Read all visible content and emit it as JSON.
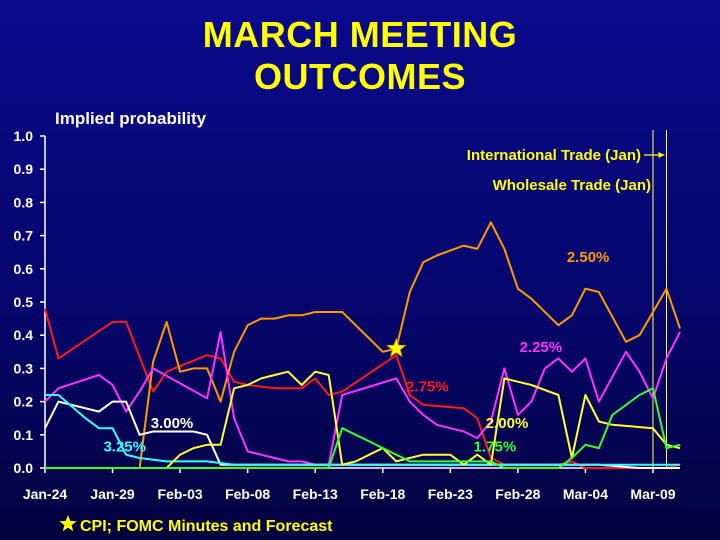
{
  "title_lines": [
    "MARCH MEETING",
    "OUTCOMES"
  ],
  "chart_data": {
    "type": "line",
    "ylabel": "Implied probability",
    "ylim": [
      0,
      1.0
    ],
    "yticks": [
      "0.0",
      "0.1",
      "0.2",
      "0.3",
      "0.4",
      "0.5",
      "0.6",
      "0.7",
      "0.8",
      "0.9",
      "1.0"
    ],
    "xticks": [
      "Jan-24",
      "Jan-29",
      "Feb-03",
      "Feb-08",
      "Feb-13",
      "Feb-18",
      "Feb-23",
      "Feb-28",
      "Mar-04",
      "Mar-09"
    ],
    "xlim": [
      0,
      47
    ],
    "grid": false,
    "series": [
      {
        "name": "2.75%",
        "color": "#ff1a1a",
        "x": [
          0,
          1,
          5,
          6,
          8,
          9,
          12,
          13,
          14,
          15,
          17,
          18,
          19,
          20,
          21,
          22,
          26,
          27,
          28,
          31,
          32,
          33,
          34,
          38,
          39,
          40,
          41,
          46,
          47
        ],
        "y": [
          0.48,
          0.33,
          0.44,
          0.44,
          0.23,
          0.29,
          0.34,
          0.33,
          0.26,
          0.25,
          0.24,
          0.24,
          0.24,
          0.27,
          0.22,
          0.23,
          0.34,
          0.22,
          0.19,
          0.18,
          0.15,
          0.03,
          0.01,
          0.01,
          0.02,
          0.0,
          0.0,
          0.0,
          0.01
        ]
      },
      {
        "name": "2.50%",
        "color": "#ff9900",
        "x": [
          0,
          7,
          8,
          9,
          10,
          11,
          12,
          13,
          14,
          15,
          16,
          17,
          18,
          19,
          20,
          21,
          22,
          25,
          26,
          27,
          28,
          29,
          31,
          32,
          33,
          34,
          35,
          36,
          38,
          39,
          40,
          41,
          43,
          44,
          46,
          47
        ],
        "y": [
          0.0,
          0.0,
          0.32,
          0.44,
          0.29,
          0.3,
          0.3,
          0.2,
          0.35,
          0.43,
          0.45,
          0.45,
          0.46,
          0.46,
          0.47,
          0.47,
          0.47,
          0.35,
          0.36,
          0.53,
          0.62,
          0.64,
          0.67,
          0.66,
          0.74,
          0.66,
          0.54,
          0.51,
          0.43,
          0.46,
          0.54,
          0.53,
          0.38,
          0.4,
          0.54,
          0.42
        ]
      },
      {
        "name": "2.25%",
        "color": "#ff33ff",
        "x": [
          0,
          1,
          4,
          5,
          6,
          7,
          8,
          12,
          13,
          14,
          15,
          16,
          17,
          18,
          19,
          20,
          21,
          22,
          26,
          27,
          28,
          29,
          30,
          31,
          32,
          33,
          34,
          35,
          36,
          37,
          38,
          39,
          40,
          41,
          43,
          44,
          45,
          46,
          47
        ],
        "y": [
          0.2,
          0.24,
          0.28,
          0.25,
          0.17,
          0.23,
          0.3,
          0.21,
          0.41,
          0.15,
          0.05,
          0.04,
          0.03,
          0.02,
          0.02,
          0.01,
          0.01,
          0.22,
          0.27,
          0.2,
          0.16,
          0.13,
          0.12,
          0.11,
          0.09,
          0.14,
          0.3,
          0.16,
          0.2,
          0.3,
          0.33,
          0.29,
          0.33,
          0.2,
          0.35,
          0.29,
          0.21,
          0.33,
          0.41
        ]
      },
      {
        "name": "3.00%",
        "color": "#ffffff",
        "x": [
          0,
          1,
          4,
          5,
          6,
          7,
          8,
          9,
          10,
          11,
          12,
          13,
          14,
          17,
          20,
          23,
          26,
          29,
          32,
          35,
          38,
          41,
          44,
          47
        ],
        "y": [
          0.12,
          0.2,
          0.17,
          0.2,
          0.2,
          0.1,
          0.11,
          0.11,
          0.11,
          0.11,
          0.1,
          0.01,
          0.01,
          0.01,
          0.01,
          0.01,
          0.01,
          0.01,
          0.01,
          0.01,
          0.01,
          0.01,
          0.0,
          0.0
        ]
      },
      {
        "name": "3.25%",
        "color": "#33ffff",
        "x": [
          0,
          1,
          3,
          4,
          5,
          6,
          7,
          9,
          12,
          14,
          17,
          20,
          23,
          26,
          29,
          32,
          35,
          38,
          41,
          44,
          47
        ],
        "y": [
          0.22,
          0.22,
          0.15,
          0.12,
          0.12,
          0.04,
          0.03,
          0.02,
          0.02,
          0.01,
          0.01,
          0.01,
          0.01,
          0.01,
          0.01,
          0.01,
          0.01,
          0.01,
          0.01,
          0.01,
          0.01
        ]
      },
      {
        "name": "2.00%",
        "color": "#ffff33",
        "x": [
          0,
          9,
          10,
          11,
          12,
          13,
          14,
          15,
          16,
          17,
          18,
          19,
          20,
          21,
          22,
          23,
          24,
          25,
          26,
          27,
          28,
          29,
          30,
          31,
          32,
          33,
          34,
          35,
          36,
          38,
          39,
          40,
          41,
          42,
          45,
          46,
          47
        ],
        "y": [
          0.0,
          0.0,
          0.04,
          0.06,
          0.07,
          0.07,
          0.24,
          0.25,
          0.27,
          0.28,
          0.29,
          0.25,
          0.29,
          0.28,
          0.01,
          0.02,
          0.04,
          0.06,
          0.02,
          0.03,
          0.04,
          0.04,
          0.04,
          0.01,
          0.04,
          0.01,
          0.27,
          0.26,
          0.25,
          0.22,
          0.03,
          0.22,
          0.14,
          0.13,
          0.12,
          0.07,
          0.06
        ]
      },
      {
        "name": "1.75%",
        "color": "#33ff33",
        "x": [
          0,
          21,
          22,
          23,
          24,
          25,
          26,
          27,
          28,
          29,
          30,
          31,
          32,
          33,
          34,
          35,
          36,
          38,
          39,
          40,
          41,
          42,
          43,
          44,
          45,
          46,
          47
        ],
        "y": [
          0.0,
          0.0,
          0.12,
          0.1,
          0.08,
          0.06,
          0.04,
          0.02,
          0.02,
          0.02,
          0.02,
          0.02,
          0.02,
          0.02,
          0.0,
          0.0,
          0.0,
          0.0,
          0.03,
          0.07,
          0.06,
          0.16,
          0.19,
          0.22,
          0.24,
          0.06,
          0.07
        ]
      }
    ],
    "annotations": {
      "event_lines": [
        {
          "label": "International Trade (Jan)",
          "x": 46,
          "has_arrow": true
        },
        {
          "label": "Wholesale Trade (Jan)",
          "x": 45,
          "has_arrow": false
        }
      ],
      "star": {
        "x": 26,
        "y": 0.36
      },
      "footnote": "CPI; FOMC Minutes and Forecast",
      "series_labels": [
        {
          "series": "2.50%",
          "x": 40.2,
          "y": 0.62
        },
        {
          "series": "2.25%",
          "x": 36.7,
          "y": 0.35
        },
        {
          "series": "2.75%",
          "x": 28.3,
          "y": 0.23
        },
        {
          "series": "2.00%",
          "x": 34.2,
          "y": 0.12
        },
        {
          "series": "1.75%",
          "x": 33.3,
          "y": 0.05
        },
        {
          "series": "3.00%",
          "x": 9.4,
          "y": 0.12
        },
        {
          "series": "3.25%",
          "x": 5.9,
          "y": 0.05
        }
      ]
    },
    "colors": {
      "background": "#06066e",
      "title": "#ffff00",
      "annotation_text": "#ffff00",
      "axis": "#ffffff",
      "event_line": "#ffff66",
      "star": "#ffff00"
    }
  }
}
